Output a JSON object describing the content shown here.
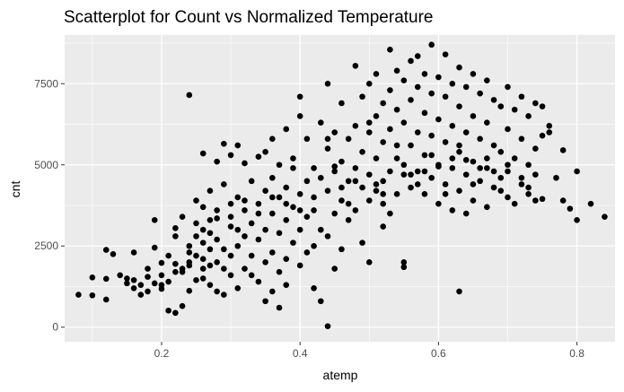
{
  "chart_data": {
    "type": "scatter",
    "title": "Scatterplot for Count vs Normalized Temperature",
    "xlabel": "atemp",
    "ylabel": "cnt",
    "xlim": [
      0.06,
      0.855
    ],
    "ylim": [
      -450,
      9000
    ],
    "x_ticks": [
      0.2,
      0.4,
      0.6,
      0.8
    ],
    "x_tick_labels": [
      "0.2",
      "0.4",
      "0.6",
      "0.8"
    ],
    "y_ticks": [
      0,
      2500,
      5000,
      7500
    ],
    "y_tick_labels": [
      "0",
      "2500",
      "5000",
      "7500"
    ],
    "grid": true,
    "panel_color": "#ebebeb",
    "grid_color": "#ffffff",
    "point_color": "#000000",
    "points": [
      [
        0.08,
        1000
      ],
      [
        0.1,
        980
      ],
      [
        0.12,
        850
      ],
      [
        0.1,
        1530
      ],
      [
        0.12,
        1490
      ],
      [
        0.12,
        2380
      ],
      [
        0.13,
        2250
      ],
      [
        0.14,
        1600
      ],
      [
        0.15,
        1500
      ],
      [
        0.16,
        1450
      ],
      [
        0.16,
        1200
      ],
      [
        0.16,
        2300
      ],
      [
        0.17,
        1300
      ],
      [
        0.17,
        1000
      ],
      [
        0.18,
        1800
      ],
      [
        0.18,
        1550
      ],
      [
        0.19,
        2450
      ],
      [
        0.19,
        3300
      ],
      [
        0.19,
        1350
      ],
      [
        0.2,
        1980
      ],
      [
        0.2,
        1180
      ],
      [
        0.2,
        1600
      ],
      [
        0.21,
        1400
      ],
      [
        0.21,
        2200
      ],
      [
        0.21,
        510
      ],
      [
        0.22,
        3050
      ],
      [
        0.22,
        2800
      ],
      [
        0.22,
        1950
      ],
      [
        0.22,
        440
      ],
      [
        0.23,
        3400
      ],
      [
        0.23,
        1700
      ],
      [
        0.23,
        650
      ],
      [
        0.23,
        1800
      ],
      [
        0.24,
        1900
      ],
      [
        0.24,
        1120
      ],
      [
        0.24,
        7150
      ],
      [
        0.24,
        2500
      ],
      [
        0.24,
        2000
      ],
      [
        0.25,
        1450
      ],
      [
        0.25,
        3900
      ],
      [
        0.25,
        2200
      ],
      [
        0.25,
        3200
      ],
      [
        0.25,
        2800
      ],
      [
        0.26,
        1800
      ],
      [
        0.26,
        1500
      ],
      [
        0.26,
        3700
      ],
      [
        0.26,
        2600
      ],
      [
        0.26,
        2100
      ],
      [
        0.26,
        5350
      ],
      [
        0.27,
        1900
      ],
      [
        0.27,
        3300
      ],
      [
        0.27,
        2400
      ],
      [
        0.27,
        4200
      ],
      [
        0.27,
        2900
      ],
      [
        0.27,
        1300
      ],
      [
        0.28,
        1100
      ],
      [
        0.28,
        5100
      ],
      [
        0.28,
        3600
      ],
      [
        0.28,
        2000
      ],
      [
        0.28,
        3350
      ],
      [
        0.29,
        5650
      ],
      [
        0.29,
        4400
      ],
      [
        0.29,
        2400
      ],
      [
        0.29,
        1800
      ],
      [
        0.29,
        1000
      ],
      [
        0.3,
        5300
      ],
      [
        0.3,
        3100
      ],
      [
        0.3,
        2200
      ],
      [
        0.3,
        3800
      ],
      [
        0.3,
        1600
      ],
      [
        0.31,
        5600
      ],
      [
        0.31,
        4000
      ],
      [
        0.31,
        2500
      ],
      [
        0.31,
        1200
      ],
      [
        0.31,
        3000
      ],
      [
        0.32,
        5050
      ],
      [
        0.32,
        3600
      ],
      [
        0.32,
        2800
      ],
      [
        0.32,
        1800
      ],
      [
        0.33,
        4500
      ],
      [
        0.33,
        3200
      ],
      [
        0.33,
        2200
      ],
      [
        0.33,
        1600
      ],
      [
        0.34,
        5250
      ],
      [
        0.34,
        3800
      ],
      [
        0.34,
        2700
      ],
      [
        0.34,
        1400
      ],
      [
        0.35,
        5400
      ],
      [
        0.35,
        4200
      ],
      [
        0.35,
        3000
      ],
      [
        0.35,
        2000
      ],
      [
        0.35,
        800
      ],
      [
        0.36,
        5800
      ],
      [
        0.36,
        4600
      ],
      [
        0.36,
        3500
      ],
      [
        0.36,
        2300
      ],
      [
        0.36,
        1100
      ],
      [
        0.37,
        5000
      ],
      [
        0.37,
        4000
      ],
      [
        0.37,
        2900
      ],
      [
        0.37,
        1700
      ],
      [
        0.37,
        600
      ],
      [
        0.38,
        6100
      ],
      [
        0.38,
        4300
      ],
      [
        0.38,
        3300
      ],
      [
        0.38,
        2100
      ],
      [
        0.38,
        1300
      ],
      [
        0.39,
        5200
      ],
      [
        0.39,
        3700
      ],
      [
        0.39,
        2600
      ],
      [
        0.39,
        4900
      ],
      [
        0.4,
        6500
      ],
      [
        0.4,
        4100
      ],
      [
        0.4,
        3000
      ],
      [
        0.4,
        1900
      ],
      [
        0.4,
        7100
      ],
      [
        0.41,
        5800
      ],
      [
        0.41,
        4500
      ],
      [
        0.41,
        3400
      ],
      [
        0.41,
        2300
      ],
      [
        0.42,
        4900
      ],
      [
        0.42,
        3600
      ],
      [
        0.42,
        2500
      ],
      [
        0.42,
        1200
      ],
      [
        0.43,
        6300
      ],
      [
        0.43,
        4600
      ],
      [
        0.43,
        3000
      ],
      [
        0.43,
        800
      ],
      [
        0.44,
        7500
      ],
      [
        0.44,
        5500
      ],
      [
        0.44,
        4200
      ],
      [
        0.44,
        2800
      ],
      [
        0.44,
        30
      ],
      [
        0.45,
        6000
      ],
      [
        0.45,
        4800
      ],
      [
        0.45,
        3500
      ],
      [
        0.45,
        1800
      ],
      [
        0.46,
        6900
      ],
      [
        0.46,
        5100
      ],
      [
        0.46,
        3900
      ],
      [
        0.46,
        2400
      ],
      [
        0.47,
        5800
      ],
      [
        0.47,
        4500
      ],
      [
        0.47,
        3300
      ],
      [
        0.48,
        8050
      ],
      [
        0.48,
        6200
      ],
      [
        0.48,
        4900
      ],
      [
        0.48,
        3600
      ],
      [
        0.49,
        7100
      ],
      [
        0.49,
        5400
      ],
      [
        0.49,
        4300
      ],
      [
        0.49,
        2600
      ],
      [
        0.5,
        7500
      ],
      [
        0.5,
        6000
      ],
      [
        0.5,
        4700
      ],
      [
        0.5,
        3900
      ],
      [
        0.5,
        2000
      ],
      [
        0.51,
        7800
      ],
      [
        0.51,
        6500
      ],
      [
        0.51,
        5200
      ],
      [
        0.51,
        4200
      ],
      [
        0.52,
        6900
      ],
      [
        0.52,
        5700
      ],
      [
        0.52,
        4500
      ],
      [
        0.52,
        3100
      ],
      [
        0.53,
        8550
      ],
      [
        0.53,
        7300
      ],
      [
        0.53,
        6100
      ],
      [
        0.53,
        4800
      ],
      [
        0.53,
        3500
      ],
      [
        0.54,
        7900
      ],
      [
        0.54,
        6700
      ],
      [
        0.54,
        5200
      ],
      [
        0.54,
        4100
      ],
      [
        0.55,
        7600
      ],
      [
        0.55,
        6300
      ],
      [
        0.55,
        4700
      ],
      [
        0.55,
        2000
      ],
      [
        0.55,
        1850
      ],
      [
        0.56,
        8200
      ],
      [
        0.56,
        7000
      ],
      [
        0.56,
        5600
      ],
      [
        0.56,
        4300
      ],
      [
        0.57,
        8350
      ],
      [
        0.57,
        7400
      ],
      [
        0.57,
        6000
      ],
      [
        0.57,
        4800
      ],
      [
        0.58,
        7800
      ],
      [
        0.58,
        6600
      ],
      [
        0.58,
        5300
      ],
      [
        0.58,
        4100
      ],
      [
        0.59,
        8700
      ],
      [
        0.59,
        7200
      ],
      [
        0.59,
        5900
      ],
      [
        0.59,
        4600
      ],
      [
        0.6,
        7700
      ],
      [
        0.6,
        6400
      ],
      [
        0.6,
        5000
      ],
      [
        0.6,
        3800
      ],
      [
        0.61,
        8400
      ],
      [
        0.61,
        7100
      ],
      [
        0.61,
        5700
      ],
      [
        0.61,
        4400
      ],
      [
        0.62,
        7500
      ],
      [
        0.62,
        6200
      ],
      [
        0.62,
        4900
      ],
      [
        0.62,
        3600
      ],
      [
        0.63,
        8000
      ],
      [
        0.63,
        6800
      ],
      [
        0.63,
        5400
      ],
      [
        0.63,
        4200
      ],
      [
        0.63,
        1100
      ],
      [
        0.64,
        7400
      ],
      [
        0.64,
        6000
      ],
      [
        0.64,
        4700
      ],
      [
        0.64,
        3500
      ],
      [
        0.65,
        7800
      ],
      [
        0.65,
        6500
      ],
      [
        0.65,
        5100
      ],
      [
        0.65,
        3900
      ],
      [
        0.66,
        7200
      ],
      [
        0.66,
        5800
      ],
      [
        0.66,
        4500
      ],
      [
        0.67,
        7600
      ],
      [
        0.67,
        6300
      ],
      [
        0.67,
        4900
      ],
      [
        0.67,
        3700
      ],
      [
        0.68,
        7000
      ],
      [
        0.68,
        5600
      ],
      [
        0.68,
        4300
      ],
      [
        0.69,
        6800
      ],
      [
        0.69,
        5400
      ],
      [
        0.69,
        4600
      ],
      [
        0.7,
        7400
      ],
      [
        0.7,
        6100
      ],
      [
        0.7,
        4800
      ],
      [
        0.7,
        4000
      ],
      [
        0.71,
        6700
      ],
      [
        0.71,
        5200
      ],
      [
        0.71,
        3800
      ],
      [
        0.72,
        7100
      ],
      [
        0.72,
        5800
      ],
      [
        0.72,
        4400
      ],
      [
        0.73,
        6500
      ],
      [
        0.73,
        5000
      ],
      [
        0.73,
        4100
      ],
      [
        0.74,
        6900
      ],
      [
        0.74,
        5500
      ],
      [
        0.74,
        4700
      ],
      [
        0.75,
        6800
      ],
      [
        0.75,
        5900
      ],
      [
        0.75,
        3950
      ],
      [
        0.76,
        6200
      ],
      [
        0.76,
        6000
      ],
      [
        0.78,
        5450
      ],
      [
        0.78,
        3900
      ],
      [
        0.79,
        3650
      ],
      [
        0.8,
        4800
      ],
      [
        0.8,
        3300
      ],
      [
        0.82,
        3800
      ],
      [
        0.84,
        3400
      ],
      [
        0.45,
        4950
      ],
      [
        0.48,
        4500
      ],
      [
        0.52,
        4100
      ],
      [
        0.56,
        4700
      ],
      [
        0.6,
        4950
      ],
      [
        0.64,
        5150
      ],
      [
        0.68,
        4800
      ],
      [
        0.72,
        4600
      ],
      [
        0.42,
        4000
      ],
      [
        0.38,
        3800
      ],
      [
        0.34,
        3500
      ],
      [
        0.3,
        3400
      ],
      [
        0.26,
        3000
      ],
      [
        0.47,
        3800
      ],
      [
        0.51,
        4400
      ],
      [
        0.55,
        5000
      ],
      [
        0.59,
        5300
      ],
      [
        0.63,
        5600
      ],
      [
        0.67,
        5200
      ],
      [
        0.44,
        5800
      ],
      [
        0.5,
        6300
      ],
      [
        0.54,
        5600
      ],
      [
        0.58,
        4800
      ],
      [
        0.62,
        5200
      ],
      [
        0.66,
        4900
      ],
      [
        0.7,
        5000
      ],
      [
        0.36,
        4000
      ],
      [
        0.32,
        3900
      ],
      [
        0.28,
        2700
      ],
      [
        0.24,
        2300
      ],
      [
        0.22,
        1700
      ],
      [
        0.2,
        1300
      ],
      [
        0.18,
        1100
      ],
      [
        0.15,
        1350
      ],
      [
        0.4,
        3600
      ],
      [
        0.46,
        4300
      ],
      [
        0.52,
        3800
      ],
      [
        0.57,
        4400
      ],
      [
        0.61,
        4100
      ],
      [
        0.65,
        4400
      ],
      [
        0.69,
        4200
      ],
      [
        0.73,
        4300
      ],
      [
        0.77,
        4600
      ],
      [
        0.74,
        3900
      ]
    ]
  }
}
